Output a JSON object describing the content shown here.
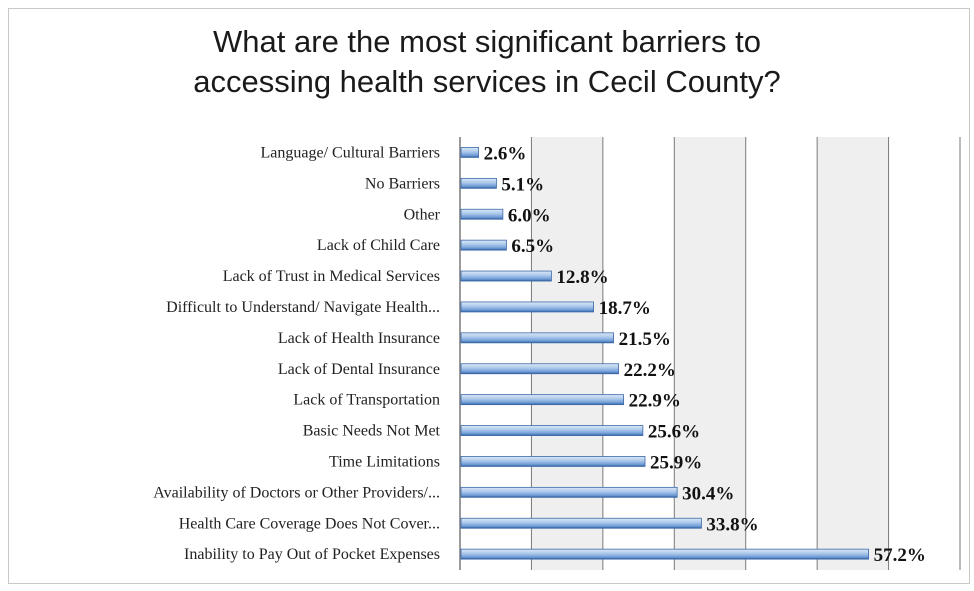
{
  "chart_data": {
    "type": "bar",
    "orientation": "horizontal",
    "title_lines": [
      "What are the most significant barriers to",
      "accessing health services in Cecil County?"
    ],
    "categories": [
      "Language/ Cultural Barriers",
      "No Barriers",
      "Other",
      "Lack of Child Care",
      "Lack of Trust in Medical Services",
      "Difficult to Understand/ Navigate Health...",
      "Lack of Health Insurance",
      "Lack of Dental Insurance",
      "Lack of Transportation",
      "Basic Needs Not Met",
      "Time Limitations",
      "Availability of Doctors or Other Providers/...",
      "Health Care Coverage Does Not Cover...",
      "Inability to Pay Out of Pocket Expenses"
    ],
    "values": [
      2.6,
      5.1,
      6.0,
      6.5,
      12.8,
      18.7,
      21.5,
      22.2,
      22.9,
      25.6,
      25.9,
      30.4,
      33.8,
      57.2
    ],
    "value_labels": [
      "2.6%",
      "5.1%",
      "6.0%",
      "6.5%",
      "12.8%",
      "18.7%",
      "21.5%",
      "22.2%",
      "22.9%",
      "25.6%",
      "25.9%",
      "30.4%",
      "33.8%",
      "57.2%"
    ],
    "xlim": [
      0,
      70
    ],
    "grid": true,
    "colors": {
      "bar_light": "#dce9f7",
      "bar_mid": "#8fb4e3",
      "bar_dark": "#2e5f9e",
      "plot_bg_alt": "#efefef",
      "gridline": "#7a7a7a"
    }
  }
}
